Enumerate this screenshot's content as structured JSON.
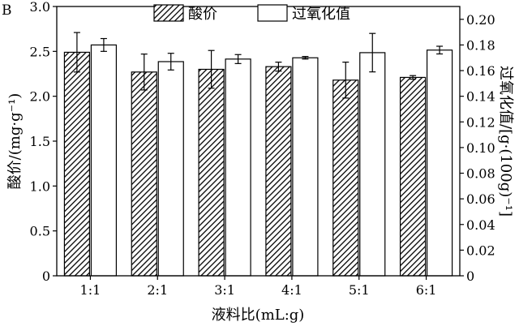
{
  "panel_label": "B",
  "chart_data": {
    "type": "bar",
    "categories": [
      "1:1",
      "2:1",
      "3:1",
      "4:1",
      "5:1",
      "6:1"
    ],
    "xlabel": "液料比(mL:g)",
    "ylabel_left": "酸价/(mg·g⁻¹)",
    "ylabel_right": "过氧化值/[g·(100g)⁻¹]",
    "ylim_left": [
      0,
      3.0
    ],
    "ylim_right": [
      0,
      0.21
    ],
    "yticks_left": [
      "0",
      "0.5",
      "1.0",
      "1.5",
      "2.0",
      "2.5",
      "3.0"
    ],
    "yticks_right": [
      "0",
      "0.02",
      "0.04",
      "0.06",
      "0.08",
      "0.10",
      "0.12",
      "0.14",
      "0.16",
      "0.18",
      "0.20"
    ],
    "grid": false,
    "legend_position": "top-center",
    "series": [
      {
        "name": "酸价",
        "axis": "left",
        "pattern": "hatched",
        "values": [
          2.49,
          2.27,
          2.3,
          2.33,
          2.18,
          2.21
        ],
        "errors": [
          0.22,
          0.2,
          0.21,
          0.05,
          0.2,
          0.02
        ]
      },
      {
        "name": "过氧化值",
        "axis": "right",
        "pattern": "white",
        "values": [
          0.18,
          0.167,
          0.169,
          0.17,
          0.174,
          0.176
        ],
        "errors": [
          0.005,
          0.0065,
          0.0035,
          0.001,
          0.015,
          0.003
        ]
      }
    ]
  }
}
